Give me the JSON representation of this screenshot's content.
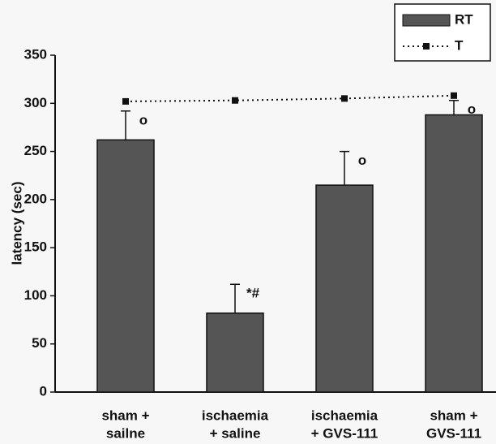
{
  "chart_data": {
    "type": "bar",
    "y_label": "latency (sec)",
    "categories": [
      [
        "sham +",
        "sailne"
      ],
      [
        "ischaemia",
        "+ saline"
      ],
      [
        "ischaemia",
        "+ GVS-111"
      ],
      [
        "sham +",
        "GVS-111"
      ]
    ],
    "series": [
      {
        "name": "RT",
        "type": "bar",
        "color": "#555555",
        "values": [
          262,
          82,
          215,
          288
        ],
        "errors": [
          30,
          30,
          35,
          15
        ]
      },
      {
        "name": "T",
        "type": "line",
        "color": "#111111",
        "values": [
          302,
          303,
          305,
          308
        ]
      }
    ],
    "annotations": [
      "o",
      "*#",
      "o",
      "o"
    ],
    "ylim": [
      0,
      350
    ],
    "yticks": [
      0,
      50,
      100,
      150,
      200,
      250,
      300,
      350
    ],
    "legend": "top-right"
  }
}
